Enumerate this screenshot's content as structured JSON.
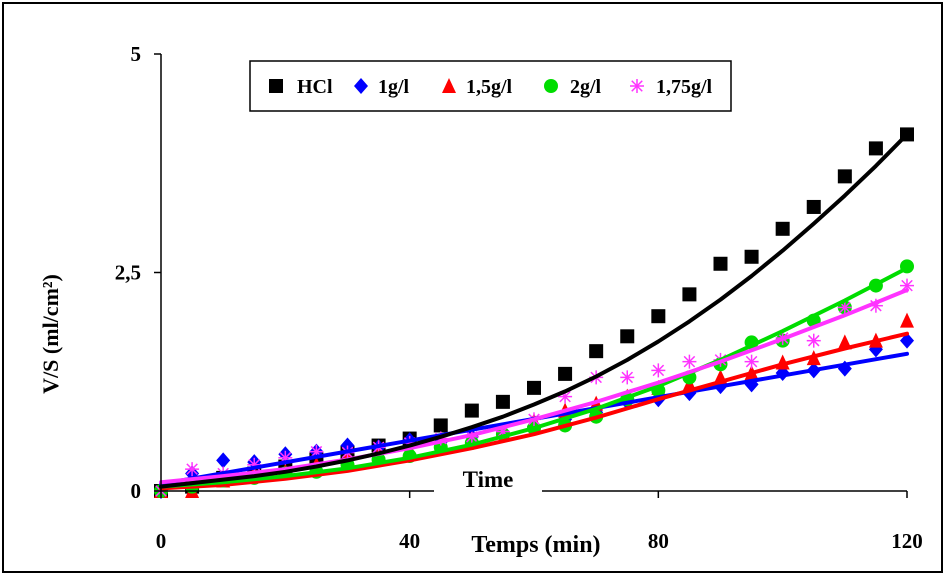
{
  "chart_data": {
    "type": "scatter",
    "xlabel": "Temps (min)",
    "ylabel": "V/S (ml/cm²)",
    "annotation": "Time",
    "xlim": [
      0,
      120
    ],
    "ylim": [
      0,
      5
    ],
    "x_ticks": [
      "0",
      "40",
      "80",
      "120"
    ],
    "y_ticks": [
      "0",
      "2,5",
      "5"
    ],
    "x_tick_values": [
      0,
      40,
      80,
      120
    ],
    "y_tick_values": [
      0,
      2.5,
      5
    ],
    "legend_placement": "top-center",
    "series": [
      {
        "name": "HCl",
        "color": "#000000",
        "marker": "square",
        "x": [
          0,
          5,
          10,
          15,
          20,
          25,
          30,
          35,
          40,
          45,
          50,
          55,
          60,
          65,
          70,
          75,
          80,
          85,
          90,
          95,
          100,
          105,
          110,
          115,
          120
        ],
        "y": [
          0,
          0.05,
          0.15,
          0.2,
          0.28,
          0.36,
          0.44,
          0.52,
          0.6,
          0.75,
          0.92,
          1.02,
          1.18,
          1.34,
          1.6,
          1.77,
          2.0,
          2.25,
          2.6,
          2.68,
          3.0,
          3.25,
          3.6,
          3.92,
          4.08
        ],
        "fit": [
          [
            0,
            0.05
          ],
          [
            5,
            0.09
          ],
          [
            10,
            0.13
          ],
          [
            15,
            0.17
          ],
          [
            20,
            0.22
          ],
          [
            25,
            0.28
          ],
          [
            30,
            0.35
          ],
          [
            35,
            0.43
          ],
          [
            40,
            0.52
          ],
          [
            45,
            0.62
          ],
          [
            50,
            0.73
          ],
          [
            55,
            0.85
          ],
          [
            60,
            0.99
          ],
          [
            65,
            1.14
          ],
          [
            70,
            1.31
          ],
          [
            75,
            1.5
          ],
          [
            80,
            1.71
          ],
          [
            85,
            1.94
          ],
          [
            90,
            2.19
          ],
          [
            95,
            2.46
          ],
          [
            100,
            2.75
          ],
          [
            105,
            3.06
          ],
          [
            110,
            3.38
          ],
          [
            115,
            3.72
          ],
          [
            120,
            4.08
          ]
        ]
      },
      {
        "name": "1g/l",
        "color": "#0000ff",
        "marker": "diamond",
        "x": [
          0,
          5,
          10,
          15,
          20,
          25,
          30,
          35,
          40,
          45,
          50,
          55,
          60,
          65,
          70,
          75,
          80,
          85,
          90,
          95,
          100,
          105,
          110,
          115,
          120
        ],
        "y": [
          0,
          0.2,
          0.35,
          0.33,
          0.42,
          0.45,
          0.52,
          0.5,
          0.58,
          0.56,
          0.62,
          0.67,
          0.74,
          0.82,
          0.9,
          1.02,
          1.05,
          1.12,
          1.2,
          1.22,
          1.35,
          1.38,
          1.4,
          1.62,
          1.72
        ],
        "fit": [
          [
            0,
            0.08
          ],
          [
            120,
            1.57
          ]
        ]
      },
      {
        "name": "1,5g/l",
        "color": "#ff0000",
        "marker": "triangle",
        "x": [
          0,
          5,
          10,
          15,
          20,
          25,
          30,
          35,
          40,
          45,
          50,
          55,
          60,
          65,
          70,
          75,
          80,
          85,
          90,
          95,
          100,
          105,
          110,
          115,
          120
        ],
        "y": [
          0,
          0,
          0.12,
          0.2,
          0.22,
          0.3,
          0.38,
          0.42,
          0.47,
          0.52,
          0.6,
          0.68,
          0.8,
          0.92,
          1.0,
          1.08,
          1.18,
          1.22,
          1.3,
          1.35,
          1.47,
          1.52,
          1.7,
          1.72,
          1.95
        ],
        "fit": [
          [
            0,
            0.03
          ],
          [
            10,
            0.07
          ],
          [
            20,
            0.14
          ],
          [
            30,
            0.23
          ],
          [
            40,
            0.35
          ],
          [
            50,
            0.49
          ],
          [
            60,
            0.65
          ],
          [
            70,
            0.84
          ],
          [
            80,
            1.05
          ],
          [
            90,
            1.25
          ],
          [
            100,
            1.45
          ],
          [
            110,
            1.63
          ],
          [
            120,
            1.8
          ]
        ]
      },
      {
        "name": "2g/l",
        "color": "#00dd00",
        "marker": "circle",
        "x": [
          0,
          5,
          10,
          15,
          20,
          25,
          30,
          35,
          40,
          45,
          50,
          55,
          60,
          65,
          70,
          75,
          80,
          85,
          90,
          95,
          100,
          105,
          110,
          115,
          120
        ],
        "y": [
          0,
          0.05,
          0.12,
          0.15,
          0.2,
          0.22,
          0.3,
          0.36,
          0.4,
          0.5,
          0.55,
          0.65,
          0.72,
          0.75,
          0.85,
          1.05,
          1.15,
          1.3,
          1.45,
          1.7,
          1.72,
          1.95,
          2.1,
          2.35,
          2.57
        ],
        "fit": [
          [
            0,
            0.05
          ],
          [
            10,
            0.1
          ],
          [
            20,
            0.17
          ],
          [
            30,
            0.26
          ],
          [
            40,
            0.38
          ],
          [
            50,
            0.53
          ],
          [
            60,
            0.72
          ],
          [
            70,
            0.94
          ],
          [
            80,
            1.2
          ],
          [
            90,
            1.5
          ],
          [
            100,
            1.83
          ],
          [
            110,
            2.18
          ],
          [
            120,
            2.55
          ]
        ]
      },
      {
        "name": "1,75g/l",
        "color": "#ff33ff",
        "marker": "asterisk",
        "x": [
          0,
          5,
          10,
          15,
          20,
          25,
          30,
          35,
          40,
          45,
          50,
          55,
          60,
          65,
          70,
          75,
          80,
          85,
          90,
          95,
          100,
          105,
          110,
          115,
          120
        ],
        "y": [
          0,
          0.25,
          0.2,
          0.3,
          0.38,
          0.45,
          0.44,
          0.5,
          0.55,
          0.6,
          0.62,
          0.68,
          0.82,
          1.08,
          1.3,
          1.3,
          1.38,
          1.48,
          1.5,
          1.48,
          1.75,
          1.72,
          2.1,
          2.12,
          2.35
        ],
        "fit": [
          [
            0,
            0.1
          ],
          [
            10,
            0.17
          ],
          [
            20,
            0.25
          ],
          [
            30,
            0.36
          ],
          [
            40,
            0.49
          ],
          [
            50,
            0.64
          ],
          [
            60,
            0.82
          ],
          [
            70,
            1.02
          ],
          [
            80,
            1.24
          ],
          [
            90,
            1.48
          ],
          [
            100,
            1.74
          ],
          [
            110,
            2.01
          ],
          [
            120,
            2.3
          ]
        ]
      }
    ]
  }
}
